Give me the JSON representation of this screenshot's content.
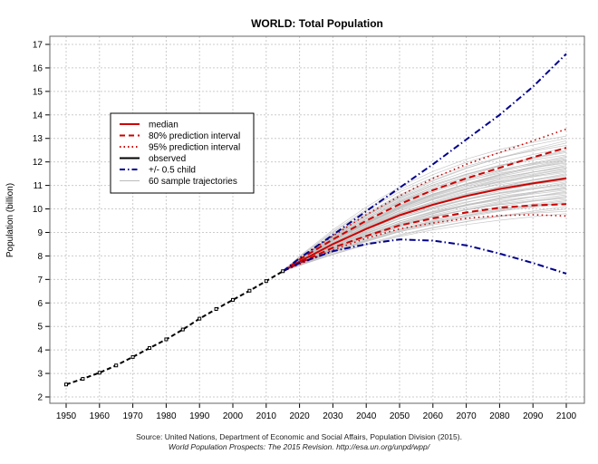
{
  "chart_data": {
    "type": "line",
    "title": "WORLD: Total Population",
    "xlabel": "",
    "ylabel": "Population (billion)",
    "xlim": [
      1950,
      2100
    ],
    "ylim": [
      2,
      17
    ],
    "xticks": [
      1950,
      1960,
      1970,
      1980,
      1990,
      2000,
      2010,
      2020,
      2030,
      2040,
      2050,
      2060,
      2070,
      2080,
      2090,
      2100
    ],
    "yticks": [
      2,
      3,
      4,
      5,
      6,
      7,
      8,
      9,
      10,
      11,
      12,
      13,
      14,
      15,
      16,
      17
    ],
    "grid": true,
    "legend_position": "top-left",
    "legend": [
      {
        "label": "median",
        "color": "#cc0000",
        "style": "solid"
      },
      {
        "label": "80% prediction interval",
        "color": "#cc0000",
        "style": "dashed"
      },
      {
        "label": "95% prediction interval",
        "color": "#cc0000",
        "style": "dotted"
      },
      {
        "label": "observed",
        "color": "#000000",
        "style": "solid"
      },
      {
        "label": "+/- 0.5 child",
        "color": "#00008b",
        "style": "dashdot"
      },
      {
        "label": "60 sample trajectories",
        "color": "#bbbbbb",
        "style": "solid"
      }
    ],
    "observed": {
      "x": [
        1950,
        1955,
        1960,
        1965,
        1970,
        1975,
        1980,
        1985,
        1990,
        1995,
        2000,
        2005,
        2010,
        2015
      ],
      "y": [
        2.53,
        2.77,
        3.03,
        3.34,
        3.7,
        4.08,
        4.45,
        4.87,
        5.33,
        5.74,
        6.13,
        6.52,
        6.93,
        7.35
      ]
    },
    "projection_x": [
      2015,
      2020,
      2030,
      2040,
      2050,
      2060,
      2070,
      2080,
      2090,
      2100
    ],
    "median": [
      7.35,
      7.76,
      8.5,
      9.15,
      9.73,
      10.18,
      10.55,
      10.85,
      11.09,
      11.3
    ],
    "pi80_upper": [
      7.35,
      7.85,
      8.7,
      9.5,
      10.2,
      10.8,
      11.3,
      11.75,
      12.2,
      12.6
    ],
    "pi80_lower": [
      7.35,
      7.7,
      8.35,
      8.85,
      9.3,
      9.6,
      9.85,
      10.05,
      10.15,
      10.2
    ],
    "pi95_upper": [
      7.35,
      7.9,
      8.85,
      9.75,
      10.55,
      11.3,
      11.9,
      12.4,
      12.9,
      13.4
    ],
    "pi95_lower": [
      7.35,
      7.65,
      8.25,
      8.75,
      9.15,
      9.4,
      9.6,
      9.72,
      9.75,
      9.7
    ],
    "high_variant": [
      7.35,
      7.9,
      8.9,
      9.9,
      10.9,
      11.9,
      12.95,
      14.0,
      15.2,
      16.6
    ],
    "low_variant": [
      7.35,
      7.7,
      8.2,
      8.5,
      8.7,
      8.65,
      8.45,
      8.1,
      7.7,
      7.25
    ],
    "trajectories_2100": [
      9.8,
      9.9,
      10.0,
      10.1,
      10.2,
      10.25,
      10.3,
      10.4,
      10.45,
      10.5,
      10.55,
      10.6,
      10.65,
      10.7,
      10.75,
      10.8,
      10.85,
      10.9,
      10.95,
      11.0,
      11.05,
      11.1,
      11.15,
      11.2,
      11.25,
      11.3,
      11.35,
      11.4,
      11.45,
      11.5,
      11.55,
      11.6,
      11.65,
      11.7,
      11.75,
      11.8,
      11.85,
      11.9,
      11.95,
      12.0,
      12.05,
      12.1,
      12.15,
      12.2,
      12.25,
      12.3,
      12.4,
      12.5,
      12.6,
      12.7,
      12.8,
      12.9,
      13.0,
      13.1,
      10.35,
      10.9,
      11.3,
      11.7,
      12.1,
      12.45
    ]
  },
  "source": {
    "line1": "Source: United Nations, Department of Economic and Social Affairs, Population Division (2015).",
    "line2": "World Population Prospects: The 2015 Revision. http://esa.un.org/unpd/wpp/"
  }
}
